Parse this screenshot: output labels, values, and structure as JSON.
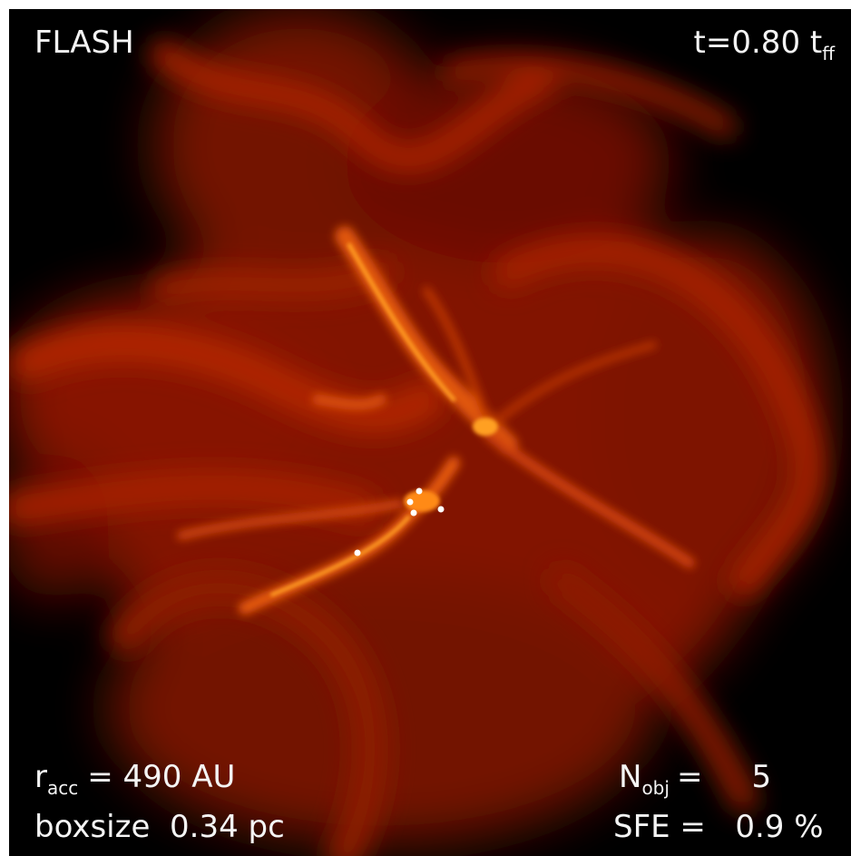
{
  "labels": {
    "code": "FLASH",
    "time": "t=0.80 t",
    "time_sub": "ff",
    "racc": "r",
    "racc_sub": "acc",
    "racc_value": "= 490 AU",
    "boxsize": "boxsize  0.34 pc",
    "nobj": "N",
    "nobj_sub": "obj",
    "nobj_value": "=     5",
    "sfe": "SFE =   0.9 %"
  }
}
